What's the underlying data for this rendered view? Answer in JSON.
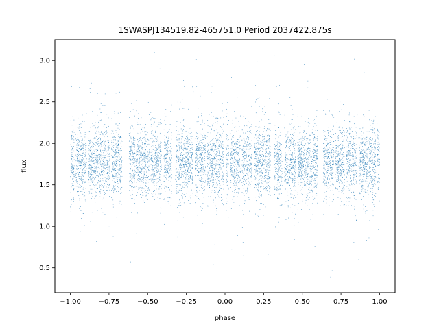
{
  "chart_data": {
    "type": "scatter",
    "title": "1SWASPJ134519.82-465751.0 Period 2037422.875s",
    "xlabel": "phase",
    "ylabel": "flux",
    "xlim": [
      -1.1,
      1.1
    ],
    "ylim": [
      0.2,
      3.25
    ],
    "x_ticks": [
      -1.0,
      -0.75,
      -0.5,
      -0.25,
      0.0,
      0.25,
      0.5,
      0.75,
      1.0
    ],
    "x_tick_labels": [
      "−1.00",
      "−0.75",
      "−0.50",
      "−0.25",
      "0.00",
      "0.25",
      "0.50",
      "0.75",
      "1.00"
    ],
    "y_ticks": [
      0.5,
      1.0,
      1.5,
      2.0,
      2.5,
      3.0
    ],
    "y_tick_labels": [
      "0.5",
      "1.0",
      "1.5",
      "2.0",
      "2.5",
      "3.0"
    ],
    "grid": false,
    "legend": "none",
    "point_color": "#1f77b4",
    "series": [
      {
        "phase_range": [
          -1.0,
          1.0
        ],
        "flux_core_range": [
          1.4,
          2.2
        ],
        "flux_median": 1.78,
        "flux_extremes": [
          0.33,
          3.1
        ],
        "segments": [
          [
            -1.0,
            -0.975
          ],
          [
            -0.965,
            -0.895
          ],
          [
            -0.885,
            -0.745
          ],
          [
            -0.735,
            -0.665
          ],
          [
            -0.62,
            -0.58
          ],
          [
            -0.575,
            -0.49
          ],
          [
            -0.48,
            -0.41
          ],
          [
            -0.395,
            -0.345
          ],
          [
            -0.32,
            -0.205
          ],
          [
            -0.19,
            -0.125
          ],
          [
            -0.115,
            -0.005
          ],
          [
            0.005,
            0.025
          ],
          [
            0.035,
            0.1
          ],
          [
            0.11,
            0.175
          ],
          [
            0.19,
            0.295
          ],
          [
            0.32,
            0.37
          ],
          [
            0.385,
            0.46
          ],
          [
            0.47,
            0.555
          ],
          [
            0.56,
            0.6
          ],
          [
            0.635,
            0.705
          ],
          [
            0.715,
            0.775
          ],
          [
            0.785,
            0.855
          ],
          [
            0.865,
            0.975
          ],
          [
            0.985,
            1.0
          ]
        ]
      }
    ]
  }
}
